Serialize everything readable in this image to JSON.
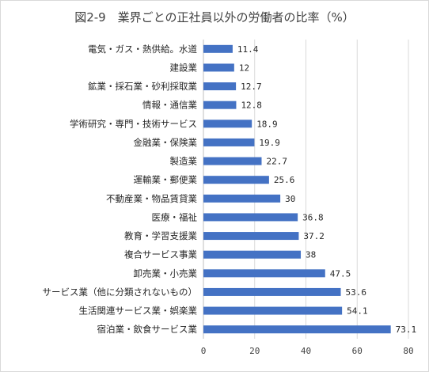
{
  "chart_data": {
    "type": "bar",
    "orientation": "horizontal",
    "title": "図2-9　業界ごとの正社員以外の労働者の比率（%）",
    "categories": [
      "電気・ガス・熱供給。水道",
      "建設業",
      "鉱業・採石業・砂利採取業",
      "情報・通信業",
      "学術研究・専門・技術サービス",
      "金融業・保険業",
      "製造業",
      "運輸業・郵便業",
      "不動産業・物品賃貸業",
      "医療・福祉",
      "教育・学習支援業",
      "複合サービス事業",
      "卸売業・小売業",
      "サービス業（他に分類されないもの）",
      "生活関連サービス業・娯楽業",
      "宿泊業・飲食サービス業"
    ],
    "values": [
      11.4,
      12,
      12.7,
      12.8,
      18.9,
      19.9,
      22.7,
      25.6,
      30,
      36.8,
      37.2,
      38,
      47.5,
      53.6,
      54.1,
      73.1
    ],
    "value_labels": [
      "11.4",
      "12",
      "12.7",
      "12.8",
      "18.9",
      "19.9",
      "22.7",
      "25.6",
      "30",
      "36.8",
      "37.2",
      "38",
      "47.5",
      "53.6",
      "54.1",
      "73.1"
    ],
    "xlim": [
      0,
      80
    ],
    "xticks": [
      0,
      20,
      40,
      60,
      80
    ],
    "grid": true,
    "legend": "none",
    "bar_color": "#4472c4"
  }
}
